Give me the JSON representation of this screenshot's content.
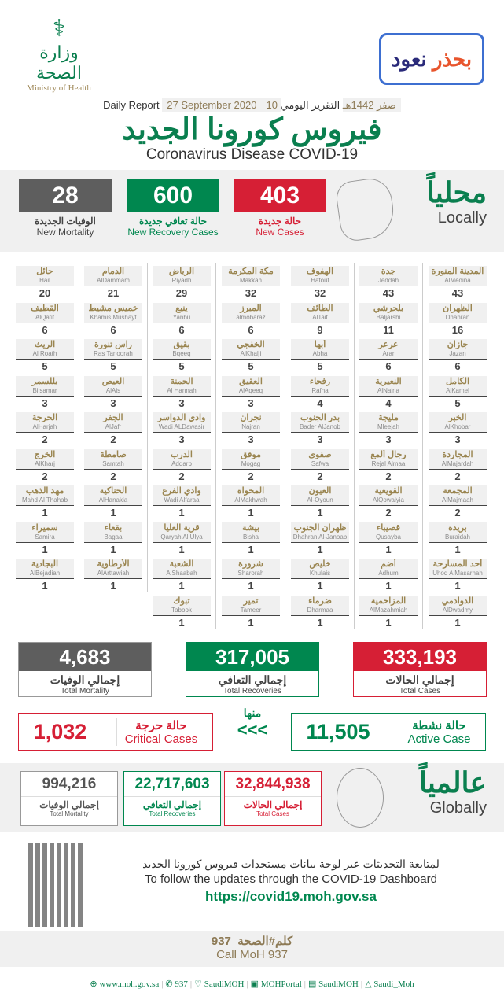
{
  "header": {
    "logo_ar": "وزارة الصحة",
    "logo_en": "Ministry of Health",
    "campaign_ar_1": "نعود",
    "campaign_ar_2": "بحذر",
    "report_ar": "التقرير اليومي",
    "hijri_date": "10 صفر 1442هـ",
    "gregorian_date": "27 September 2020",
    "report_en": "Daily Report",
    "title_ar": "فيروس كورونا الجديد",
    "title_en": "Coronavirus Disease COVID-19"
  },
  "locally": {
    "ar": "محلياً",
    "en": "Locally",
    "new_cases": {
      "value": "403",
      "ar": "حالة جديدة",
      "en": "New Cases"
    },
    "new_recovery": {
      "value": "600",
      "ar": "حالة تعافي جديدة",
      "en": "New Recovery Cases"
    },
    "new_mortality": {
      "value": "28",
      "ar": "الوفيات الجديدة",
      "en": "New Mortality"
    }
  },
  "colors": {
    "red": "#d61f35",
    "green": "#00874f",
    "gray": "#5e5e5e",
    "gold": "#9a8550"
  },
  "cities": [
    [
      [
        "المدينة المنورة",
        "AlMedina",
        "43"
      ],
      [
        "الظهران",
        "Dhahran",
        "16"
      ],
      [
        "جازان",
        "Jazan",
        "6"
      ],
      [
        "الكامل",
        "AlKamel",
        "5"
      ],
      [
        "الخبر",
        "AlKhobar",
        "3"
      ],
      [
        "المجاردة",
        "AlMajardah",
        "2"
      ],
      [
        "المجمعة",
        "AlMajmaah",
        "2"
      ],
      [
        "بريدة",
        "Buraidah",
        "1"
      ],
      [
        "أحد المسارحة",
        "Uhod AlMasarhah",
        "1"
      ],
      [
        "الدوادمي",
        "AlDwadmy",
        "1"
      ]
    ],
    [
      [
        "جدة",
        "Jeddah",
        "43"
      ],
      [
        "بلجرشي",
        "Baljarshi",
        "11"
      ],
      [
        "عرعر",
        "Arar",
        "6"
      ],
      [
        "النعيرية",
        "AlNairia",
        "4"
      ],
      [
        "مليجة",
        "Mleejah",
        "3"
      ],
      [
        "رجال ألمع",
        "Rejal Almaa",
        "2"
      ],
      [
        "القويعية",
        "AlQowaiyia",
        "2"
      ],
      [
        "قصيباء",
        "Qusayba",
        "1"
      ],
      [
        "أضم",
        "Adhum",
        "1"
      ],
      [
        "المزاحمية",
        "AlMazahmiah",
        "1"
      ]
    ],
    [
      [
        "الهفوف",
        "Hafout",
        "32"
      ],
      [
        "الطائف",
        "AlTaif",
        "9"
      ],
      [
        "أبها",
        "Abha",
        "5"
      ],
      [
        "رفحاء",
        "Rafha",
        "4"
      ],
      [
        "بدر الجنوب",
        "Bader AlJanob",
        "3"
      ],
      [
        "صفوى",
        "Safwa",
        "2"
      ],
      [
        "العيون",
        "Al-Oyoun",
        "1"
      ],
      [
        "ظهران الجنوب",
        "Dhahran Al-Janoab",
        "1"
      ],
      [
        "خليص",
        "Khulais",
        "1"
      ],
      [
        "ضرماء",
        "Dharmaa",
        "1"
      ]
    ],
    [
      [
        "مكة المكرمة",
        "Makkah",
        "32"
      ],
      [
        "المبرز",
        "almobaraz",
        "6"
      ],
      [
        "الخفجي",
        "AlKhalji",
        "5"
      ],
      [
        "العقيق",
        "AlAqeeq",
        "3"
      ],
      [
        "نجران",
        "Najran",
        "3"
      ],
      [
        "موقق",
        "Mogag",
        "2"
      ],
      [
        "المخواة",
        "AlMakhwah",
        "1"
      ],
      [
        "بيشة",
        "Bisha",
        "1"
      ],
      [
        "شرورة",
        "Sharorah",
        "1"
      ],
      [
        "تمير",
        "Tameer",
        "1"
      ]
    ],
    [
      [
        "الرياض",
        "Riyadh",
        "29"
      ],
      [
        "ينبع",
        "Yanbu",
        "6"
      ],
      [
        "بقيق",
        "Bqeeq",
        "5"
      ],
      [
        "الحمنة",
        "Al Hannah",
        "3"
      ],
      [
        "وادي الدواسر",
        "Wadi ALDawasir",
        "3"
      ],
      [
        "الدرب",
        "Addarb",
        "2"
      ],
      [
        "وادي الفرع",
        "Wadi Alfaraa",
        "1"
      ],
      [
        "قرية العليا",
        "Qaryah Al Ulya",
        "1"
      ],
      [
        "الشعبة",
        "AlShaabah",
        "1"
      ],
      [
        "تبوك",
        "Tabook",
        "1"
      ]
    ],
    [
      [
        "الدمام",
        "AlDammam",
        "21"
      ],
      [
        "خميس مشيط",
        "Khamis Mushayt",
        "6"
      ],
      [
        "راس تنورة",
        "Ras Tanoorah",
        "5"
      ],
      [
        "العيص",
        "AlAis",
        "3"
      ],
      [
        "الجفر",
        "AlJafr",
        "2"
      ],
      [
        "صامطة",
        "Samtah",
        "2"
      ],
      [
        "الحناكية",
        "AlHanakia",
        "1"
      ],
      [
        "بقعاء",
        "Bagaa",
        "1"
      ],
      [
        "الأرطاوية",
        "AlArttawiah",
        "1"
      ]
    ],
    [
      [
        "حائل",
        "Hail",
        "20"
      ],
      [
        "القطيف",
        "AlQatif",
        "6"
      ],
      [
        "الريث",
        "Al Roath",
        "5"
      ],
      [
        "بللسمر",
        "Bilsamar",
        "3"
      ],
      [
        "الحرجة",
        "AlHarjah",
        "2"
      ],
      [
        "الخرج",
        "AlKharj",
        "2"
      ],
      [
        "مهد الذهب",
        "Mahd Al Thahab",
        "1"
      ],
      [
        "سميراء",
        "Samira",
        "1"
      ],
      [
        "البجادية",
        "AlBejadiah",
        "1"
      ]
    ]
  ],
  "totals": {
    "cases": {
      "value": "333,193",
      "ar": "إجمالي الحالات",
      "en": "Total Cases"
    },
    "recoveries": {
      "value": "317,005",
      "ar": "إجمالي التعافي",
      "en": "Total Recoveries"
    },
    "mortality": {
      "value": "4,683",
      "ar": "إجمالي الوفيات",
      "en": "Total Mortality"
    }
  },
  "active": {
    "value": "11,505",
    "ar": "حالة نشطة",
    "en": "Active Case"
  },
  "of_which": {
    "ar": "منها",
    "arrows": "<<<"
  },
  "critical": {
    "value": "1,032",
    "ar": "حالة حرجة",
    "en": "Critical Cases"
  },
  "globally": {
    "ar": "عالمياً",
    "en": "Globally",
    "cases": {
      "value": "32,844,938",
      "ar": "إجمالي الحالات",
      "en": "Total Cases"
    },
    "recoveries": {
      "value": "22,717,603",
      "ar": "إجمالي التعافي",
      "en": "Total Recoveries"
    },
    "mortality": {
      "value": "994,216",
      "ar": "إجمالي الوفيات",
      "en": "Total Mortality"
    }
  },
  "dashboard": {
    "ar": "لمتابعة التحديثات عبر لوحة بيانات مستجدات فيروس كورونا الجديد",
    "en": "To follow the updates through the COVID-19 Dashboard",
    "url": "https://covid19.moh.gov.sa"
  },
  "call": {
    "ar": "كلم#الصحة_937",
    "en": "Call MoH 937"
  },
  "footer": [
    {
      "icon": "globe-icon",
      "glyph": "⊕",
      "text": "www.moh.gov.sa"
    },
    {
      "icon": "phone-icon",
      "glyph": "✆",
      "text": "937"
    },
    {
      "icon": "twitter-icon",
      "glyph": "♡",
      "text": "SaudiMOH"
    },
    {
      "icon": "youtube-icon",
      "glyph": "▣",
      "text": "MOHPortal"
    },
    {
      "icon": "facebook-icon",
      "glyph": "▤",
      "text": "SaudiMOH"
    },
    {
      "icon": "snapchat-icon",
      "glyph": "△",
      "text": "Saudi_Moh"
    }
  ]
}
